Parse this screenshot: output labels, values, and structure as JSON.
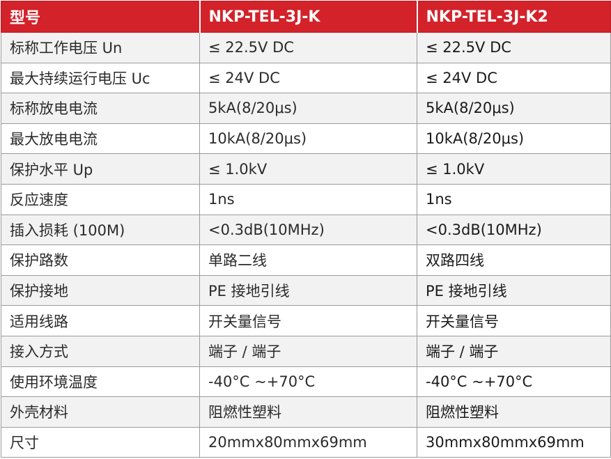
{
  "header": {
    "col1": "型号",
    "col2": "NKP-TEL-3J-K",
    "col3": "NKP-TEL-3J-K2"
  },
  "rows": [
    {
      "param": "标称工作电压 Un",
      "v1": "≤ 22.5V DC",
      "v2": "≤ 22.5V DC"
    },
    {
      "param": "最大持续运行电压 Uc",
      "v1": "≤ 24V DC",
      "v2": "≤ 24V DC"
    },
    {
      "param": "标称放电电流",
      "v1": "5kA(8/20μs)",
      "v2": "5kA(8/20μs)"
    },
    {
      "param": "最大放电电流",
      "v1": "10kA(8/20μs)",
      "v2": "10kA(8/20μs)"
    },
    {
      "param": "保护水平 Up",
      "v1": "≤ 1.0kV",
      "v2": "≤ 1.0kV"
    },
    {
      "param": "反应速度",
      "v1": "1ns",
      "v2": "1ns"
    },
    {
      "param": "插入损耗 (100M)",
      "v1": "<0.3dB(10MHz)",
      "v2": "<0.3dB(10MHz)"
    },
    {
      "param": "保护路数",
      "v1": "单路二线",
      "v2": "双路四线"
    },
    {
      "param": "保护接地",
      "v1": "PE 接地引线",
      "v2": "PE 接地引线"
    },
    {
      "param": "适用线路",
      "v1": "开关量信号",
      "v2": "开关量信号"
    },
    {
      "param": "接入方式",
      "v1": "端子 / 端子",
      "v2": "端子 / 端子"
    },
    {
      "param": "使用环境温度",
      "v1": "-40°C ~+70°C",
      "v2": "-40°C ~+70°C"
    },
    {
      "param": "外壳材料",
      "v1": "阻燃性塑料",
      "v2": "阻燃性塑料"
    },
    {
      "param": "尺寸",
      "v1": "20mmx80mmx69mm",
      "v2": "30mmx80mmx69mm"
    }
  ],
  "colors": {
    "header_bg": "#d3222a",
    "header_text": "#ffffff",
    "odd_row_bg": "#f2f2f2",
    "even_row_bg": "#ffffff",
    "border": "#9a9a9a"
  }
}
